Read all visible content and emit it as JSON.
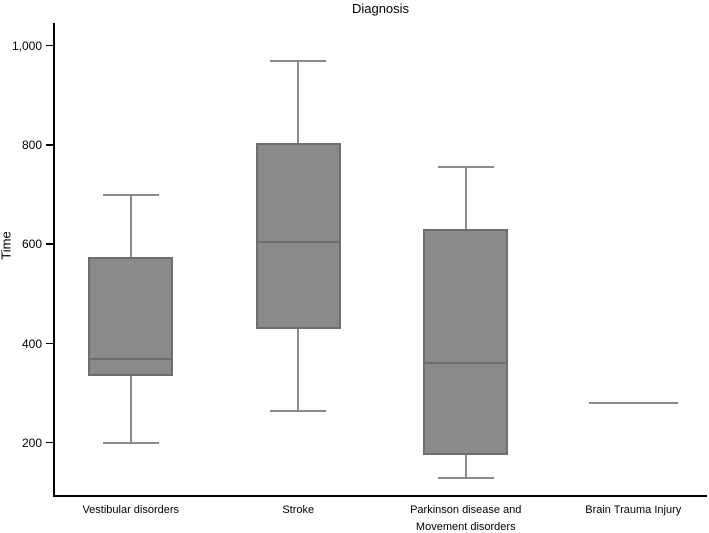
{
  "figure": {
    "background": "#ffffff"
  },
  "colors": {
    "axis": "#000000",
    "text": "#000000",
    "box_fill": "#8a8a8a",
    "box_border": "#6e6e6e",
    "median": "#6e6e6e",
    "whisker": "#8a8a8a",
    "whisker_cap": "#8a8a8a"
  },
  "chart_data": {
    "type": "boxplot",
    "title": "Diagnosis",
    "xlabel": "",
    "ylabel": "Time",
    "ylim": [
      93,
      1046
    ],
    "yticks": [
      200,
      400,
      600,
      800,
      1000
    ],
    "ytick_labels": [
      "200",
      "400",
      "600",
      "800",
      "1,000"
    ],
    "grid": false,
    "legend": false,
    "categories": [
      "Vestibular disorders",
      "Stroke",
      "Parkinson disease and Movement disorders",
      "Brain Trauma Injury"
    ],
    "category_label_lines": [
      [
        "Vestibular disorders"
      ],
      [
        "Stroke"
      ],
      [
        "Parkinson disease and",
        "Movement disorders"
      ],
      [
        "Brain Trauma Injury"
      ]
    ],
    "series": [
      {
        "category": "Vestibular disorders",
        "whisker_low": 200,
        "q1": 335,
        "median": 370,
        "q3": 575,
        "whisker_high": 700
      },
      {
        "category": "Stroke",
        "whisker_low": 265,
        "q1": 430,
        "median": 605,
        "q3": 805,
        "whisker_high": 970
      },
      {
        "category": "Parkinson disease and Movement disorders",
        "whisker_low": 130,
        "q1": 175,
        "median": 360,
        "q3": 630,
        "whisker_high": 755
      },
      {
        "category": "Brain Trauma Injury",
        "whisker_low": null,
        "q1": null,
        "median": 280,
        "q3": null,
        "whisker_high": null
      }
    ]
  }
}
